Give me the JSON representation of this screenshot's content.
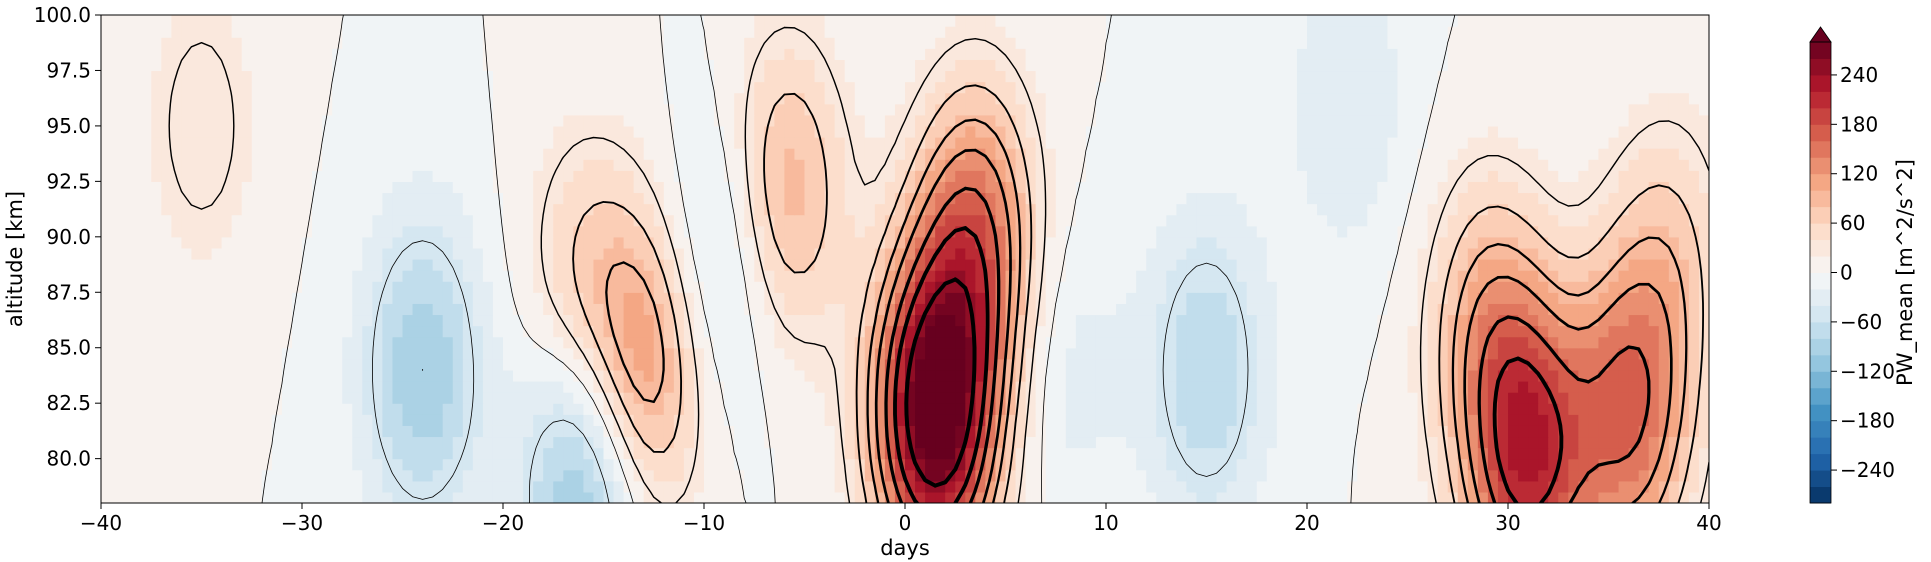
{
  "chart_data": {
    "type": "heatmap",
    "xlabel": "days",
    "ylabel": "altitude [km]",
    "xlim": [
      -40,
      40
    ],
    "ylim": [
      78,
      100
    ],
    "x_ticks": [
      -40,
      -30,
      -20,
      -10,
      0,
      10,
      20,
      30,
      40
    ],
    "x_tick_labels": [
      "−40",
      "−30",
      "−20",
      "−10",
      "0",
      "10",
      "20",
      "30",
      "40"
    ],
    "y_ticks": [
      80.0,
      82.5,
      85.0,
      87.5,
      90.0,
      92.5,
      95.0,
      97.5,
      100.0
    ],
    "y_tick_labels": [
      "80.0",
      "82.5",
      "85.0",
      "87.5",
      "90.0",
      "92.5",
      "95.0",
      "97.5",
      "100.0"
    ],
    "colorbar": {
      "label": "PW_mean [m^2/s^2]",
      "range": [
        -280,
        280
      ],
      "extend": "max",
      "colormap": "RdBu_r",
      "ticks": [
        -240,
        -180,
        -120,
        -60,
        0,
        60,
        120,
        180,
        240
      ],
      "tick_labels": [
        "−240",
        "−180",
        "−120",
        "−60",
        "0",
        "60",
        "120",
        "180",
        "240"
      ]
    },
    "contours": "black line contours overlaid, thicker lines at higher values",
    "features": [
      {
        "day": -35,
        "altitude": 95,
        "value": 40
      },
      {
        "day": -24,
        "altitude": 84,
        "value": -100
      },
      {
        "day": -16,
        "altitude": 88,
        "value": 60
      },
      {
        "day": -13,
        "altitude": 84,
        "value": 120
      },
      {
        "day": -16,
        "altitude": 79,
        "value": -120
      },
      {
        "day": -9,
        "altitude": 89,
        "value": -60
      },
      {
        "day": -6,
        "altitude": 92,
        "value": 100
      },
      {
        "day": 1.5,
        "altitude": 82,
        "value": 300
      },
      {
        "day": 3.5,
        "altitude": 90,
        "value": 150
      },
      {
        "day": 8,
        "altitude": 84,
        "value": -30
      },
      {
        "day": 15,
        "altitude": 84,
        "value": -80
      },
      {
        "day": 22,
        "altitude": 96,
        "value": -40
      },
      {
        "day": 31,
        "altitude": 80,
        "value": 200
      },
      {
        "day": 36,
        "altitude": 82,
        "value": 150
      },
      {
        "day": 29,
        "altitude": 86,
        "value": 90
      },
      {
        "day": 38,
        "altitude": 89,
        "value": 60
      }
    ]
  }
}
